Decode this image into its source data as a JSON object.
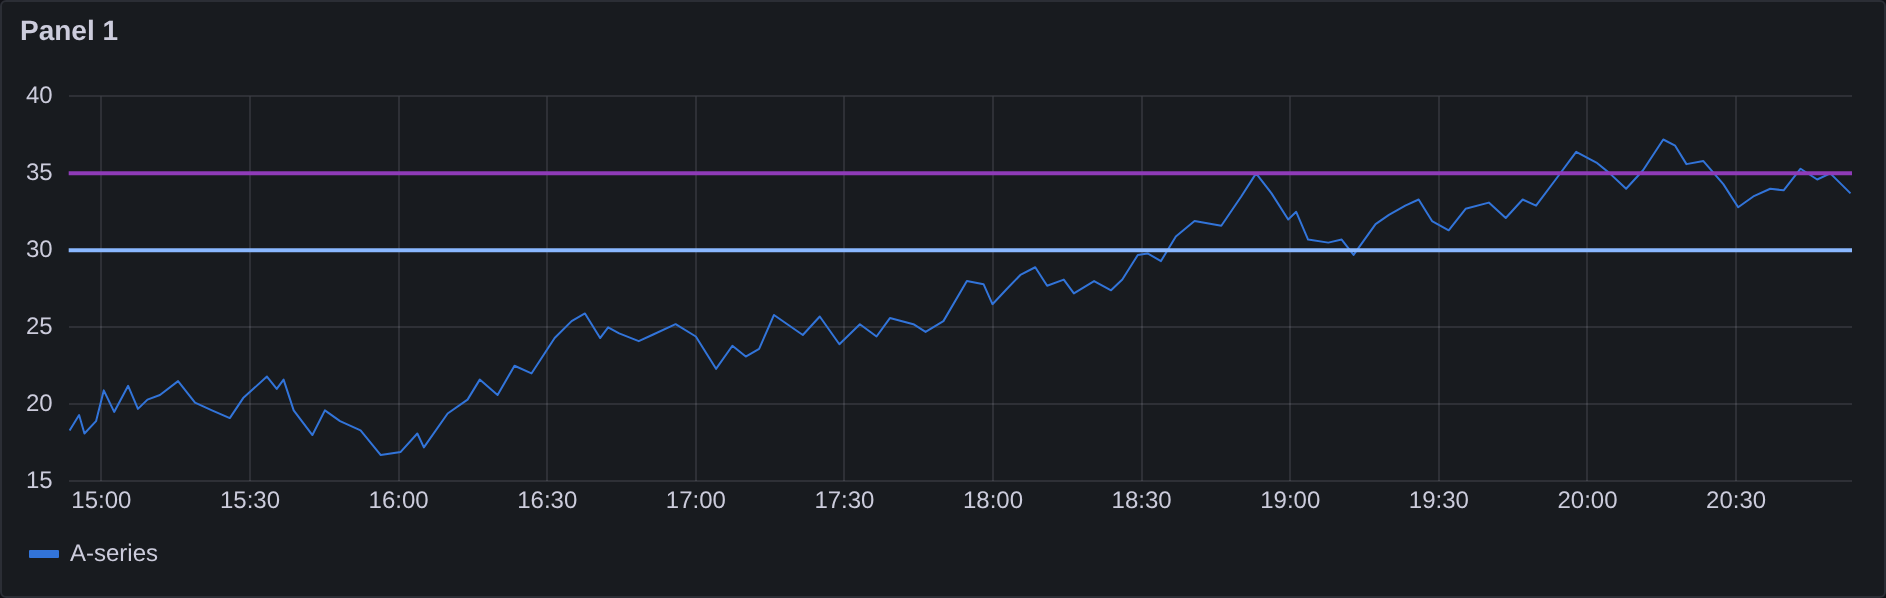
{
  "chart_data": {
    "type": "line",
    "title": "Panel 1",
    "x": [
      14.893,
      14.925,
      14.943,
      14.982,
      15.008,
      15.043,
      15.09,
      15.123,
      15.155,
      15.197,
      15.258,
      15.315,
      15.372,
      15.432,
      15.477,
      15.557,
      15.59,
      15.613,
      15.647,
      15.71,
      15.752,
      15.803,
      15.872,
      15.94,
      16.007,
      16.063,
      16.085,
      16.165,
      16.232,
      16.273,
      16.333,
      16.39,
      16.447,
      16.525,
      16.582,
      16.627,
      16.678,
      16.705,
      16.742,
      16.808,
      16.853,
      16.932,
      17.0,
      17.068,
      17.123,
      17.168,
      17.213,
      17.263,
      17.36,
      17.417,
      17.483,
      17.552,
      17.608,
      17.653,
      17.732,
      17.773,
      17.833,
      17.912,
      17.968,
      17.998,
      18.047,
      18.092,
      18.142,
      18.182,
      18.238,
      18.272,
      18.34,
      18.397,
      18.435,
      18.487,
      18.52,
      18.565,
      18.615,
      18.678,
      18.768,
      18.835,
      18.885,
      18.937,
      18.993,
      19.02,
      19.06,
      19.128,
      19.173,
      19.213,
      19.287,
      19.332,
      19.387,
      19.432,
      19.477,
      19.533,
      19.59,
      19.668,
      19.725,
      19.782,
      19.827,
      19.893,
      19.962,
      20.03,
      20.075,
      20.13,
      20.187,
      20.255,
      20.295,
      20.333,
      20.39,
      20.457,
      20.507,
      20.558,
      20.615,
      20.66,
      20.717,
      20.773,
      20.817,
      20.885
    ],
    "series": [
      {
        "name": "A-series",
        "color": "#3274d9",
        "values": [
          18.3,
          19.3,
          18.1,
          18.9,
          20.9,
          19.5,
          21.2,
          19.7,
          20.3,
          20.6,
          21.5,
          20.1,
          19.6,
          19.1,
          20.4,
          21.8,
          21.0,
          21.6,
          19.6,
          18.0,
          19.6,
          18.9,
          18.3,
          16.7,
          16.9,
          18.1,
          17.2,
          19.4,
          20.3,
          21.6,
          20.6,
          22.5,
          22.0,
          24.3,
          25.4,
          25.9,
          24.3,
          25.0,
          24.6,
          24.1,
          24.5,
          25.2,
          24.4,
          22.3,
          23.8,
          23.1,
          23.6,
          25.8,
          24.5,
          25.7,
          23.9,
          25.2,
          24.4,
          25.6,
          25.2,
          24.7,
          25.4,
          28.0,
          27.8,
          26.5,
          27.5,
          28.4,
          28.9,
          27.7,
          28.1,
          27.2,
          28.0,
          27.4,
          28.1,
          29.7,
          29.8,
          29.3,
          30.9,
          31.9,
          31.6,
          33.5,
          35.0,
          33.7,
          32.0,
          32.5,
          30.7,
          30.5,
          30.7,
          29.7,
          31.7,
          32.3,
          32.9,
          33.3,
          31.9,
          31.3,
          32.7,
          33.1,
          32.1,
          33.3,
          32.9,
          34.6,
          36.4,
          35.7,
          35.0,
          34.0,
          35.2,
          37.2,
          36.8,
          35.6,
          35.8,
          34.3,
          32.8,
          33.5,
          34.0,
          33.9,
          35.3,
          34.6,
          35.0,
          33.7
        ]
      }
    ],
    "xlim": [
      14.89,
      20.89
    ],
    "xticks": [
      {
        "value": 15,
        "label": "15:00"
      },
      {
        "value": 15.5,
        "label": "15:30"
      },
      {
        "value": 16,
        "label": "16:00"
      },
      {
        "value": 16.5,
        "label": "16:30"
      },
      {
        "value": 17,
        "label": "17:00"
      },
      {
        "value": 17.5,
        "label": "17:30"
      },
      {
        "value": 18,
        "label": "18:00"
      },
      {
        "value": 18.5,
        "label": "18:30"
      },
      {
        "value": 19,
        "label": "19:00"
      },
      {
        "value": 19.5,
        "label": "19:30"
      },
      {
        "value": 20,
        "label": "20:00"
      },
      {
        "value": 20.5,
        "label": "20:30"
      }
    ],
    "ylim": [
      15,
      40
    ],
    "yticks": [
      15,
      20,
      25,
      30,
      35,
      40
    ],
    "ref_lines": [
      {
        "axis": "y",
        "value": 35,
        "color": "#8f3bb8"
      },
      {
        "axis": "y",
        "value": 30,
        "color": "#8ab8ff"
      }
    ],
    "grid": true,
    "legend": "bottom left",
    "marker": "none",
    "line_style": "solid"
  }
}
